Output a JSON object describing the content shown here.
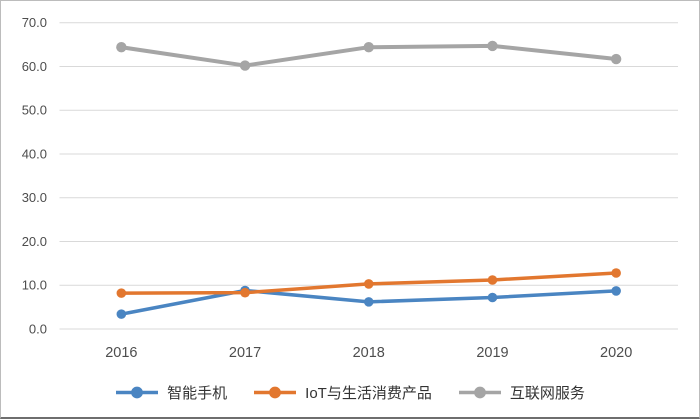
{
  "chart_data": {
    "type": "line",
    "title": "",
    "xlabel": "",
    "ylabel": "",
    "categories": [
      "2016",
      "2017",
      "2018",
      "2019",
      "2020"
    ],
    "series": [
      {
        "name": "智能手机",
        "color": "#4a85c2",
        "values": [
          3.4,
          8.8,
          6.2,
          7.2,
          8.7
        ]
      },
      {
        "name": "IoT与生活消费产品",
        "color": "#e2772f",
        "values": [
          8.2,
          8.3,
          10.3,
          11.2,
          12.8
        ]
      },
      {
        "name": "互联网服务",
        "color": "#a5a5a5",
        "values": [
          64.4,
          60.2,
          64.4,
          64.7,
          61.7
        ]
      }
    ],
    "ylim": [
      0,
      70
    ],
    "y_ticks": [
      "0.0",
      "10.0",
      "20.0",
      "30.0",
      "40.0",
      "50.0",
      "60.0",
      "70.0"
    ],
    "grid": true,
    "legend_position": "bottom",
    "gridline_color": "#d9d9d9",
    "tick_text_color": "#4d4d4d",
    "legend_text_color": "#333333"
  }
}
